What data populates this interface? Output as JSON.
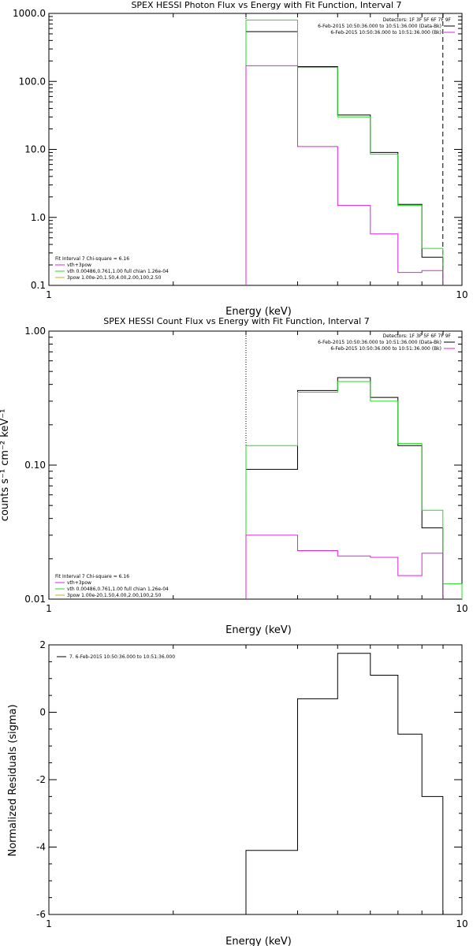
{
  "colors": {
    "data": "#000000",
    "total": "#22dd22",
    "vthbkg": "#dd22dd",
    "bkg": "#dd22dd",
    "thermal": "#22dd22",
    "powerlaw": "#ccaa22"
  },
  "chart_data": [
    {
      "type": "line",
      "title": "SPEX HESSI Photon Flux vs Energy with Fit Function, Interval 7",
      "xlabel": "Energy (keV)",
      "ylabel": "",
      "xscale": "log",
      "yscale": "log",
      "xlim": [
        1,
        10
      ],
      "ylim": [
        0.1,
        1000
      ],
      "xticks": [
        {
          "v": 1,
          "label": "1"
        },
        {
          "v": 10,
          "label": "10"
        }
      ],
      "yticks": [
        {
          "v": 0.1,
          "label": "0.1"
        },
        {
          "v": 1,
          "label": "1.0"
        },
        {
          "v": 10,
          "label": "10.0"
        },
        {
          "v": 100,
          "label": "100.0"
        },
        {
          "v": 1000,
          "label": "1000.0"
        }
      ],
      "vlines": [
        {
          "x": 3.0,
          "style": "dotted"
        },
        {
          "x": 8.99,
          "style": "dashed"
        }
      ],
      "legend_top": [
        "Detectors: 1F 3F 5F 6F 7F 9F",
        "6-Feb-2015 10:50:36.000 to 10:51:36.000 (Data-Bk)",
        "6-Feb-2015 10:50:36.000 to 10:51:36.000 (Bk)"
      ],
      "legend_bottom": [
        "Fit Interval 7   Chi-square = 6.16",
        "vth+3pow",
        "vth 0.00486,0.761,1.00  full chian 1.26e-04",
        "3pow 1.00e-20,1.50,4.00,2.00,100,2.50"
      ],
      "series": [
        {
          "name": "",
          "color_key": "data",
          "edges": [
            3.0,
            4.0,
            5.0,
            6.0,
            7.0,
            8.0,
            8.99
          ],
          "values": [
            540,
            165,
            32,
            9.0,
            1.55,
            0.26
          ]
        },
        {
          "name": "",
          "color_key": "total",
          "edges": [
            3.0,
            4.0,
            5.0,
            6.0,
            7.0,
            8.0,
            8.99
          ],
          "values": [
            800,
            160,
            30,
            8.5,
            1.5,
            0.35
          ]
        },
        {
          "name": "",
          "color_key": "vthbkg",
          "edges": [
            3.0,
            4.0,
            5.0,
            6.0,
            7.0,
            8.0,
            8.99
          ],
          "values": [
            170,
            11,
            1.5,
            0.57,
            0.155,
            0.165
          ]
        }
      ]
    },
    {
      "type": "line",
      "title": "SPEX HESSI Count Flux vs Energy with Fit Function, Interval 7",
      "xlabel": "Energy (keV)",
      "ylabel": "counts s⁻¹ cm⁻² keV⁻¹",
      "xscale": "log",
      "yscale": "log",
      "xlim": [
        1,
        10
      ],
      "ylim": [
        0.01,
        1.0
      ],
      "xticks": [
        {
          "v": 1,
          "label": "1"
        },
        {
          "v": 10,
          "label": "10"
        }
      ],
      "yticks": [
        {
          "v": 0.01,
          "label": "0.01"
        },
        {
          "v": 0.1,
          "label": "0.10"
        },
        {
          "v": 1,
          "label": "1.00"
        }
      ],
      "vlines": [
        {
          "x": 3.0,
          "style": "dotted"
        }
      ],
      "legend_top": [
        "Detectors: 1F 3F 5F 6F 7F 9F",
        "6-Feb-2015 10:50:36.000 to 10:51:36.000 (Data-Bk)",
        "6-Feb-2015 10:50:36.000 to 10:51:36.000 (Bk)"
      ],
      "legend_bottom": [
        "Fit Interval 7   Chi-square = 6.16",
        "vth+3pow",
        "vth 0.00486,0.761,1.00  full chian 1.26e-04",
        "3pow 1.00e-20,1.50,4.00,2.00,100,2.50"
      ],
      "series": [
        {
          "name": "",
          "color_key": "data",
          "edges": [
            3.0,
            4.0,
            5.0,
            6.0,
            7.0,
            8.0,
            8.99
          ],
          "values": [
            0.093,
            0.36,
            0.45,
            0.32,
            0.14,
            0.034
          ]
        },
        {
          "name": "",
          "color_key": "total",
          "edges": [
            3.0,
            4.0,
            5.0,
            6.0,
            7.0,
            8.0,
            8.99,
            10.0
          ],
          "values": [
            0.14,
            0.35,
            0.42,
            0.3,
            0.145,
            0.046,
            0.013
          ]
        },
        {
          "name": "",
          "color_key": "bkg",
          "edges": [
            3.0,
            4.0,
            5.0,
            6.0,
            7.0,
            8.0,
            8.99
          ],
          "values": [
            0.03,
            0.023,
            0.021,
            0.0205,
            0.015,
            0.022
          ]
        }
      ]
    },
    {
      "type": "line",
      "title": "",
      "xlabel": "Energy (keV)",
      "ylabel": "Normalized Residuals (sigma)",
      "xscale": "log",
      "yscale": "linear",
      "xlim": [
        1,
        10
      ],
      "ylim": [
        -6,
        2
      ],
      "xticks": [
        {
          "v": 1,
          "label": "1"
        },
        {
          "v": 10,
          "label": "10"
        }
      ],
      "yticks": [
        {
          "v": -6,
          "label": "-6"
        },
        {
          "v": -4,
          "label": "-4"
        },
        {
          "v": -2,
          "label": "-2"
        },
        {
          "v": 0,
          "label": "0"
        },
        {
          "v": 2,
          "label": "2"
        }
      ],
      "vlines": [],
      "legend_left": [
        "7.  6-Feb-2015 10:50:36.000 to 10:51:36.000"
      ],
      "series": [
        {
          "name": "",
          "color_key": "data",
          "edges": [
            3.0,
            4.0,
            5.0,
            6.0,
            7.0,
            8.0,
            8.99
          ],
          "values": [
            -4.1,
            0.4,
            1.75,
            1.1,
            -0.65,
            -2.5
          ]
        }
      ]
    }
  ]
}
